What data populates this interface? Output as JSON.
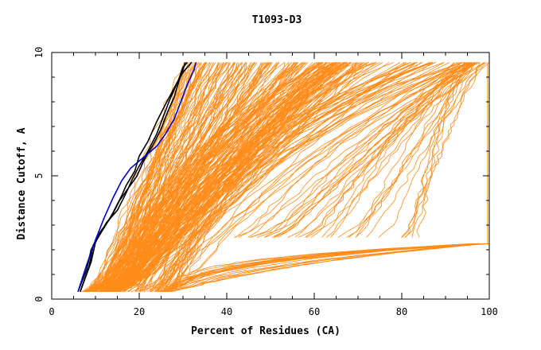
{
  "chart_data": {
    "type": "line",
    "title": "T1093-D3",
    "xlabel": "Percent of Residues (CA)",
    "ylabel": "Distance Cutoff, A",
    "xlim": [
      0,
      100
    ],
    "ylim": [
      0,
      10
    ],
    "x_ticks": [
      0,
      20,
      40,
      60,
      80,
      100
    ],
    "y_ticks": [
      0,
      5,
      10
    ],
    "grid": false,
    "legend": "none",
    "colors": {
      "background_curves": "#ff8c1a",
      "highlight_black": "#000000",
      "highlight_blue": "#0000cc"
    },
    "highlight_series": [
      {
        "color": "#000000",
        "x": [
          6.5,
          8.5,
          9.5,
          12,
          14,
          16,
          17,
          19,
          20,
          22,
          24,
          26,
          27.5,
          29,
          30,
          31
        ],
        "y": [
          0.3,
          1.3,
          2.2,
          2.9,
          3.5,
          4.2,
          4.6,
          5.2,
          5.8,
          6.4,
          7.2,
          7.9,
          8.4,
          8.9,
          9.4,
          9.6
        ]
      },
      {
        "color": "#000000",
        "x": [
          6.5,
          9,
          10,
          12.5,
          15,
          17,
          18.5,
          20,
          22,
          24,
          25.5,
          27,
          28.5,
          30,
          31.5,
          32
        ],
        "y": [
          0.3,
          1.5,
          2.3,
          3.1,
          3.6,
          4.3,
          4.9,
          5.4,
          6.0,
          6.7,
          7.4,
          8.1,
          8.7,
          9.2,
          9.5,
          9.6
        ]
      },
      {
        "color": "#000000",
        "x": [
          6,
          8,
          9,
          11,
          13.5,
          15.5,
          17.5,
          19.5,
          21,
          23,
          25,
          26.5,
          28,
          29,
          30,
          30.5
        ],
        "y": [
          0.3,
          1.2,
          2.0,
          2.7,
          3.3,
          4.0,
          4.5,
          5.0,
          5.6,
          6.2,
          6.9,
          7.6,
          8.2,
          8.8,
          9.3,
          9.6
        ]
      },
      {
        "color": "#0000cc",
        "x": [
          6,
          8,
          10,
          12,
          14,
          16,
          18,
          20,
          22,
          24,
          26,
          28,
          29.5,
          31,
          32.5,
          33
        ],
        "y": [
          0.3,
          1.4,
          2.4,
          3.3,
          4.1,
          4.8,
          5.3,
          5.6,
          5.9,
          6.2,
          6.7,
          7.3,
          8.0,
          8.7,
          9.3,
          9.6
        ]
      }
    ],
    "background_families": [
      {
        "count": 150,
        "x_start": [
          7,
          16
        ],
        "x_end": [
          30,
          72
        ],
        "curve": 1.1,
        "y_start": 0.3,
        "y_end": 9.6
      },
      {
        "count": 90,
        "x_start": [
          10,
          28
        ],
        "x_end": [
          55,
          98
        ],
        "curve": 2.8,
        "y_start": 0.3,
        "y_end": 9.6
      },
      {
        "count": 35,
        "x_start": [
          40,
          85
        ],
        "x_end": [
          92,
          100
        ],
        "curve": 1.5,
        "y_start": 2.5,
        "y_end": 9.6
      },
      {
        "count": 20,
        "x_start": [
          24,
          27
        ],
        "x_end": [
          96,
          100
        ],
        "curve": 4.0,
        "y_start": 0.3,
        "y_end": 2.25
      }
    ]
  }
}
